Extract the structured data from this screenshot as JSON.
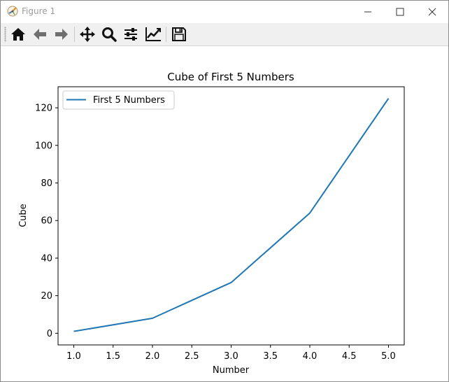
{
  "window": {
    "title": "Figure 1"
  },
  "toolbar": {
    "buttons": [
      {
        "name": "home-icon"
      },
      {
        "name": "back-arrow-icon"
      },
      {
        "name": "forward-arrow-icon"
      },
      {
        "name": "pan-icon"
      },
      {
        "name": "zoom-icon"
      },
      {
        "name": "configure-subplots-icon"
      },
      {
        "name": "edit-axis-icon"
      },
      {
        "name": "save-icon"
      }
    ]
  },
  "chart_data": {
    "type": "line",
    "title": "Cube of First 5 Numbers",
    "xlabel": "Number",
    "ylabel": "Cube",
    "xlim": [
      0.8,
      5.2
    ],
    "ylim": [
      -6.2,
      131.2
    ],
    "x_ticks": [
      1.0,
      1.5,
      2.0,
      2.5,
      3.0,
      3.5,
      4.0,
      4.5,
      5.0
    ],
    "x_tick_labels": [
      "1.0",
      "1.5",
      "2.0",
      "2.5",
      "3.0",
      "3.5",
      "4.0",
      "4.5",
      "5.0"
    ],
    "y_ticks": [
      0,
      20,
      40,
      60,
      80,
      100,
      120
    ],
    "y_tick_labels": [
      "0",
      "20",
      "40",
      "60",
      "80",
      "100",
      "120"
    ],
    "grid": false,
    "legend_position": "upper-left",
    "series": [
      {
        "name": "First 5 Numbers",
        "x": [
          1,
          2,
          3,
          4,
          5
        ],
        "y": [
          1,
          8,
          27,
          64,
          125
        ],
        "color": "#1f77b4"
      }
    ]
  }
}
